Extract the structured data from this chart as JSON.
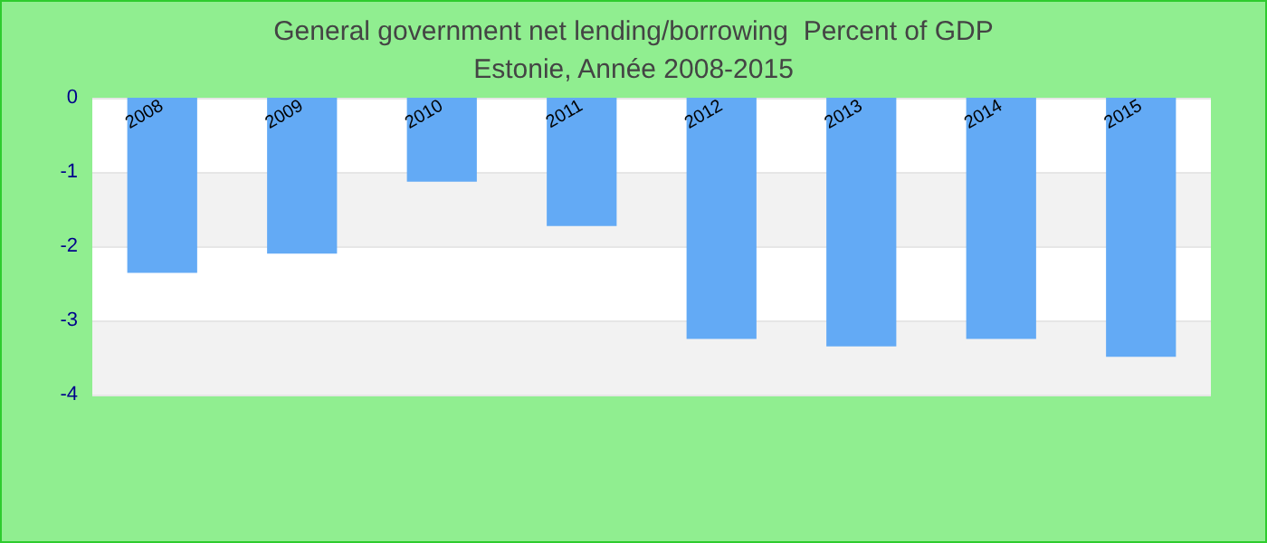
{
  "chart_data": {
    "type": "bar",
    "title": "General government net lending/borrowing  Percent of GDP",
    "subtitle": "Estonie, Année 2008-2015",
    "categories": [
      "2008",
      "2009",
      "2010",
      "2011",
      "2012",
      "2013",
      "2014",
      "2015"
    ],
    "values": [
      -2.36,
      -2.1,
      -1.13,
      -1.73,
      -3.25,
      -3.35,
      -3.25,
      -3.49
    ],
    "color": "#63aaf5",
    "ylim": [
      -4,
      0
    ],
    "yticks": [
      -4,
      -3,
      -2,
      -1,
      0
    ],
    "grid": "y"
  }
}
